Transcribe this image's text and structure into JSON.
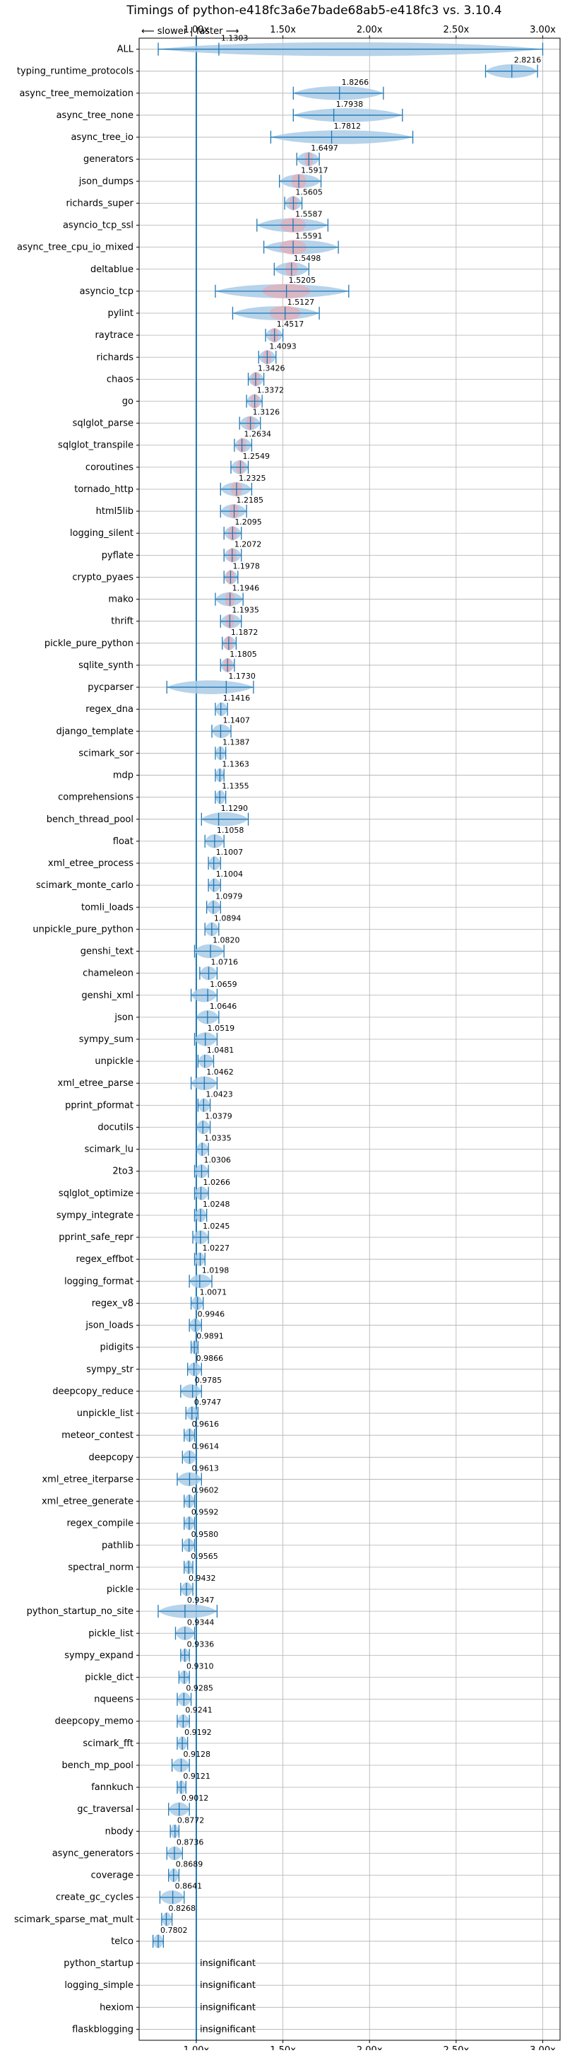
{
  "chart_data": {
    "type": "violin",
    "title": "Timings of python-e418fc3a6e7bade68ab5-e418fc3 vs. 3.10.4",
    "direction_label": "⟵ slower | faster ⟶",
    "xlim": [
      0.67,
      3.1
    ],
    "x_ticks": [
      1.0,
      1.5,
      2.0,
      2.5,
      3.0
    ],
    "x_tick_labels": [
      "1.00x",
      "1.50x",
      "2.00x",
      "2.50x",
      "3.00x"
    ],
    "reference_line": 1.0,
    "grid": true,
    "benchmarks": [
      {
        "name": "ALL",
        "value": "1.1303",
        "mean": 1.1303,
        "lo": 0.7802,
        "hi": 3.0
      },
      {
        "name": "typing_runtime_protocols",
        "value": "2.8216",
        "mean": 2.8216,
        "lo": 2.67,
        "hi": 2.97
      },
      {
        "name": "async_tree_memoization",
        "value": "1.8266",
        "mean": 1.8266,
        "lo": 1.56,
        "hi": 2.08
      },
      {
        "name": "async_tree_none",
        "value": "1.7938",
        "mean": 1.7938,
        "lo": 1.56,
        "hi": 2.19
      },
      {
        "name": "async_tree_io",
        "value": "1.7812",
        "mean": 1.7812,
        "lo": 1.43,
        "hi": 2.25
      },
      {
        "name": "generators",
        "value": "1.6497",
        "mean": 1.6497,
        "lo": 1.58,
        "hi": 1.71
      },
      {
        "name": "json_dumps",
        "value": "1.5917",
        "mean": 1.5917,
        "lo": 1.48,
        "hi": 1.72
      },
      {
        "name": "richards_super",
        "value": "1.5605",
        "mean": 1.5605,
        "lo": 1.51,
        "hi": 1.61
      },
      {
        "name": "asyncio_tcp_ssl",
        "value": "1.5587",
        "mean": 1.5587,
        "lo": 1.35,
        "hi": 1.76
      },
      {
        "name": "async_tree_cpu_io_mixed",
        "value": "1.5591",
        "mean": 1.5591,
        "lo": 1.39,
        "hi": 1.82
      },
      {
        "name": "deltablue",
        "value": "1.5498",
        "mean": 1.5498,
        "lo": 1.45,
        "hi": 1.65
      },
      {
        "name": "asyncio_tcp",
        "value": "1.5205",
        "mean": 1.5205,
        "lo": 1.11,
        "hi": 1.88
      },
      {
        "name": "pylint",
        "value": "1.5127",
        "mean": 1.5127,
        "lo": 1.21,
        "hi": 1.71
      },
      {
        "name": "raytrace",
        "value": "1.4517",
        "mean": 1.4517,
        "lo": 1.4,
        "hi": 1.5
      },
      {
        "name": "richards",
        "value": "1.4093",
        "mean": 1.4093,
        "lo": 1.36,
        "hi": 1.46
      },
      {
        "name": "chaos",
        "value": "1.3426",
        "mean": 1.3426,
        "lo": 1.3,
        "hi": 1.39
      },
      {
        "name": "go",
        "value": "1.3372",
        "mean": 1.3372,
        "lo": 1.29,
        "hi": 1.38
      },
      {
        "name": "sqlglot_parse",
        "value": "1.3126",
        "mean": 1.3126,
        "lo": 1.25,
        "hi": 1.37
      },
      {
        "name": "sqlglot_transpile",
        "value": "1.2634",
        "mean": 1.2634,
        "lo": 1.22,
        "hi": 1.32
      },
      {
        "name": "coroutines",
        "value": "1.2549",
        "mean": 1.2549,
        "lo": 1.2,
        "hi": 1.3
      },
      {
        "name": "tornado_http",
        "value": "1.2325",
        "mean": 1.2325,
        "lo": 1.14,
        "hi": 1.32
      },
      {
        "name": "html5lib",
        "value": "1.2185",
        "mean": 1.2185,
        "lo": 1.14,
        "hi": 1.29
      },
      {
        "name": "logging_silent",
        "value": "1.2095",
        "mean": 1.2095,
        "lo": 1.16,
        "hi": 1.26
      },
      {
        "name": "pyflate",
        "value": "1.2072",
        "mean": 1.2072,
        "lo": 1.16,
        "hi": 1.26
      },
      {
        "name": "crypto_pyaes",
        "value": "1.1978",
        "mean": 1.1978,
        "lo": 1.16,
        "hi": 1.24
      },
      {
        "name": "mako",
        "value": "1.1946",
        "mean": 1.1946,
        "lo": 1.11,
        "hi": 1.27
      },
      {
        "name": "thrift",
        "value": "1.1935",
        "mean": 1.1935,
        "lo": 1.14,
        "hi": 1.26
      },
      {
        "name": "pickle_pure_python",
        "value": "1.1872",
        "mean": 1.1872,
        "lo": 1.15,
        "hi": 1.23
      },
      {
        "name": "sqlite_synth",
        "value": "1.1805",
        "mean": 1.1805,
        "lo": 1.14,
        "hi": 1.22
      },
      {
        "name": "pycparser",
        "value": "1.1730",
        "mean": 1.173,
        "lo": 0.83,
        "hi": 1.33
      },
      {
        "name": "regex_dna",
        "value": "1.1416",
        "mean": 1.1416,
        "lo": 1.11,
        "hi": 1.18
      },
      {
        "name": "django_template",
        "value": "1.1407",
        "mean": 1.1407,
        "lo": 1.09,
        "hi": 1.2
      },
      {
        "name": "scimark_sor",
        "value": "1.1387",
        "mean": 1.1387,
        "lo": 1.11,
        "hi": 1.17
      },
      {
        "name": "mdp",
        "value": "1.1363",
        "mean": 1.1363,
        "lo": 1.11,
        "hi": 1.16
      },
      {
        "name": "comprehensions",
        "value": "1.1355",
        "mean": 1.1355,
        "lo": 1.11,
        "hi": 1.17
      },
      {
        "name": "bench_thread_pool",
        "value": "1.1290",
        "mean": 1.129,
        "lo": 1.03,
        "hi": 1.3
      },
      {
        "name": "float",
        "value": "1.1058",
        "mean": 1.1058,
        "lo": 1.05,
        "hi": 1.16
      },
      {
        "name": "xml_etree_process",
        "value": "1.1007",
        "mean": 1.1007,
        "lo": 1.07,
        "hi": 1.14
      },
      {
        "name": "scimark_monte_carlo",
        "value": "1.1004",
        "mean": 1.1004,
        "lo": 1.07,
        "hi": 1.14
      },
      {
        "name": "tomli_loads",
        "value": "1.0979",
        "mean": 1.0979,
        "lo": 1.06,
        "hi": 1.14
      },
      {
        "name": "unpickle_pure_python",
        "value": "1.0894",
        "mean": 1.0894,
        "lo": 1.05,
        "hi": 1.13
      },
      {
        "name": "genshi_text",
        "value": "1.0820",
        "mean": 1.082,
        "lo": 0.99,
        "hi": 1.16
      },
      {
        "name": "chameleon",
        "value": "1.0716",
        "mean": 1.0716,
        "lo": 1.02,
        "hi": 1.12
      },
      {
        "name": "genshi_xml",
        "value": "1.0659",
        "mean": 1.0659,
        "lo": 0.97,
        "hi": 1.12
      },
      {
        "name": "json",
        "value": "1.0646",
        "mean": 1.0646,
        "lo": 1.0,
        "hi": 1.13
      },
      {
        "name": "sympy_sum",
        "value": "1.0519",
        "mean": 1.0519,
        "lo": 0.99,
        "hi": 1.12
      },
      {
        "name": "unpickle",
        "value": "1.0481",
        "mean": 1.0481,
        "lo": 1.01,
        "hi": 1.1
      },
      {
        "name": "xml_etree_parse",
        "value": "1.0462",
        "mean": 1.0462,
        "lo": 0.97,
        "hi": 1.12
      },
      {
        "name": "pprint_pformat",
        "value": "1.0423",
        "mean": 1.0423,
        "lo": 1.01,
        "hi": 1.08
      },
      {
        "name": "docutils",
        "value": "1.0379",
        "mean": 1.0379,
        "lo": 1.0,
        "hi": 1.08
      },
      {
        "name": "scimark_lu",
        "value": "1.0335",
        "mean": 1.0335,
        "lo": 1.0,
        "hi": 1.07
      },
      {
        "name": "2to3",
        "value": "1.0306",
        "mean": 1.0306,
        "lo": 0.99,
        "hi": 1.07
      },
      {
        "name": "sqlglot_optimize",
        "value": "1.0266",
        "mean": 1.0266,
        "lo": 0.99,
        "hi": 1.07
      },
      {
        "name": "sympy_integrate",
        "value": "1.0248",
        "mean": 1.0248,
        "lo": 0.99,
        "hi": 1.06
      },
      {
        "name": "pprint_safe_repr",
        "value": "1.0245",
        "mean": 1.0245,
        "lo": 0.98,
        "hi": 1.07
      },
      {
        "name": "regex_effbot",
        "value": "1.0227",
        "mean": 1.0227,
        "lo": 0.99,
        "hi": 1.05
      },
      {
        "name": "logging_format",
        "value": "1.0198",
        "mean": 1.0198,
        "lo": 0.96,
        "hi": 1.09
      },
      {
        "name": "regex_v8",
        "value": "1.0071",
        "mean": 1.0071,
        "lo": 0.97,
        "hi": 1.04
      },
      {
        "name": "json_loads",
        "value": "0.9946",
        "mean": 0.9946,
        "lo": 0.96,
        "hi": 1.03
      },
      {
        "name": "pidigits",
        "value": "0.9891",
        "mean": 0.9891,
        "lo": 0.97,
        "hi": 1.01
      },
      {
        "name": "sympy_str",
        "value": "0.9866",
        "mean": 0.9866,
        "lo": 0.95,
        "hi": 1.03
      },
      {
        "name": "deepcopy_reduce",
        "value": "0.9785",
        "mean": 0.9785,
        "lo": 0.91,
        "hi": 1.03
      },
      {
        "name": "unpickle_list",
        "value": "0.9747",
        "mean": 0.9747,
        "lo": 0.94,
        "hi": 1.01
      },
      {
        "name": "meteor_contest",
        "value": "0.9616",
        "mean": 0.9616,
        "lo": 0.93,
        "hi": 0.99
      },
      {
        "name": "deepcopy",
        "value": "0.9614",
        "mean": 0.9614,
        "lo": 0.92,
        "hi": 1.0
      },
      {
        "name": "xml_etree_iterparse",
        "value": "0.9613",
        "mean": 0.9613,
        "lo": 0.89,
        "hi": 1.03
      },
      {
        "name": "xml_etree_generate",
        "value": "0.9602",
        "mean": 0.9602,
        "lo": 0.93,
        "hi": 0.99
      },
      {
        "name": "regex_compile",
        "value": "0.9592",
        "mean": 0.9592,
        "lo": 0.93,
        "hi": 0.99
      },
      {
        "name": "pathlib",
        "value": "0.9580",
        "mean": 0.958,
        "lo": 0.92,
        "hi": 0.99
      },
      {
        "name": "spectral_norm",
        "value": "0.9565",
        "mean": 0.9565,
        "lo": 0.93,
        "hi": 0.98
      },
      {
        "name": "pickle",
        "value": "0.9432",
        "mean": 0.9432,
        "lo": 0.91,
        "hi": 0.98
      },
      {
        "name": "python_startup_no_site",
        "value": "0.9347",
        "mean": 0.9347,
        "lo": 0.78,
        "hi": 1.12
      },
      {
        "name": "pickle_list",
        "value": "0.9344",
        "mean": 0.9344,
        "lo": 0.88,
        "hi": 0.99
      },
      {
        "name": "sympy_expand",
        "value": "0.9336",
        "mean": 0.9336,
        "lo": 0.91,
        "hi": 0.96
      },
      {
        "name": "pickle_dict",
        "value": "0.9310",
        "mean": 0.931,
        "lo": 0.9,
        "hi": 0.96
      },
      {
        "name": "nqueens",
        "value": "0.9285",
        "mean": 0.9285,
        "lo": 0.89,
        "hi": 0.97
      },
      {
        "name": "deepcopy_memo",
        "value": "0.9241",
        "mean": 0.9241,
        "lo": 0.89,
        "hi": 0.96
      },
      {
        "name": "scimark_fft",
        "value": "0.9192",
        "mean": 0.9192,
        "lo": 0.89,
        "hi": 0.95
      },
      {
        "name": "bench_mp_pool",
        "value": "0.9128",
        "mean": 0.9128,
        "lo": 0.86,
        "hi": 0.96
      },
      {
        "name": "fannkuch",
        "value": "0.9121",
        "mean": 0.9121,
        "lo": 0.89,
        "hi": 0.94
      },
      {
        "name": "gc_traversal",
        "value": "0.9012",
        "mean": 0.9012,
        "lo": 0.84,
        "hi": 0.96
      },
      {
        "name": "nbody",
        "value": "0.8772",
        "mean": 0.8772,
        "lo": 0.85,
        "hi": 0.9
      },
      {
        "name": "async_generators",
        "value": "0.8736",
        "mean": 0.8736,
        "lo": 0.83,
        "hi": 0.92
      },
      {
        "name": "coverage",
        "value": "0.8689",
        "mean": 0.8689,
        "lo": 0.84,
        "hi": 0.9
      },
      {
        "name": "create_gc_cycles",
        "value": "0.8641",
        "mean": 0.8641,
        "lo": 0.79,
        "hi": 0.93
      },
      {
        "name": "scimark_sparse_mat_mult",
        "value": "0.8268",
        "mean": 0.8268,
        "lo": 0.8,
        "hi": 0.86
      },
      {
        "name": "telco",
        "value": "0.7802",
        "mean": 0.7802,
        "lo": 0.75,
        "hi": 0.81
      },
      {
        "name": "python_startup",
        "value": "insignificant",
        "insignificant": true
      },
      {
        "name": "logging_simple",
        "value": "insignificant",
        "insignificant": true
      },
      {
        "name": "hexiom",
        "value": "insignificant",
        "insignificant": true
      },
      {
        "name": "flaskblogging",
        "value": "insignificant",
        "insignificant": true
      }
    ]
  },
  "colors": {
    "violin_fill": "#a9cbe6",
    "line": "#1f77b4",
    "grid": "#b0b0b0",
    "mean_highlight": "#f4a3a8"
  }
}
